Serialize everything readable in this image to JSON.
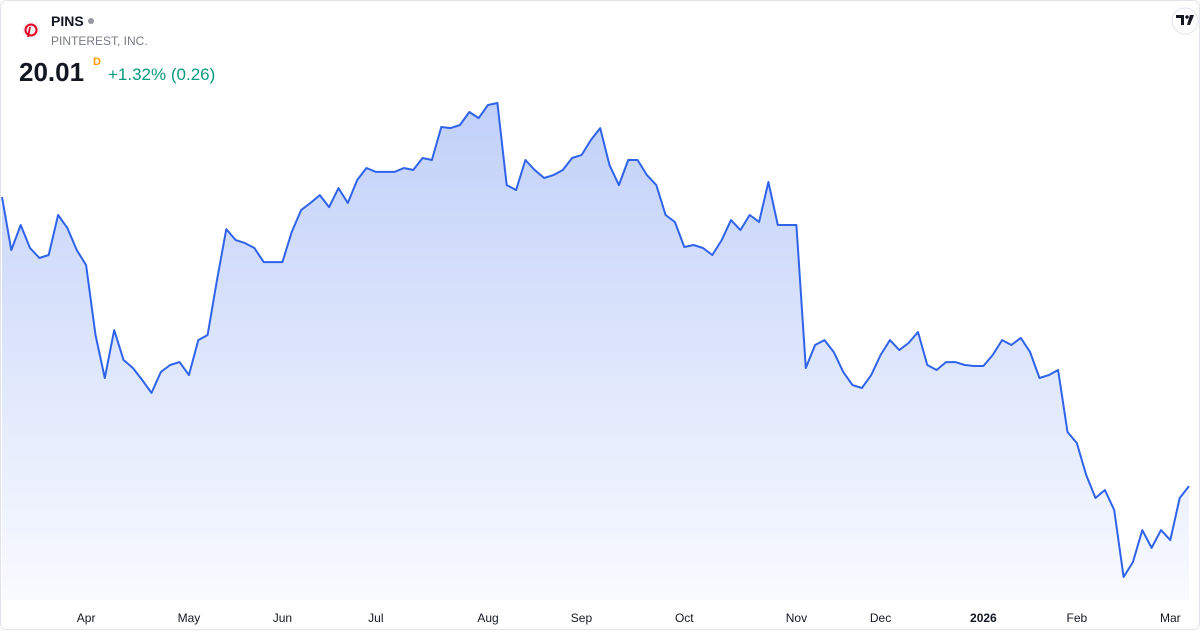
{
  "chart_data": {
    "type": "area",
    "symbol": "PINS",
    "name": "PINTEREST, INC.",
    "last_price": 20.01,
    "interval": "D",
    "change": "+1.32% (0.26)",
    "color": "#2f63ea",
    "categories": [
      null,
      null,
      null,
      null,
      null,
      null,
      null,
      null,
      null,
      "Apr",
      null,
      null,
      null,
      null,
      null,
      null,
      null,
      null,
      null,
      null,
      "May",
      null,
      null,
      null,
      null,
      null,
      null,
      null,
      null,
      null,
      "Jun",
      null,
      null,
      null,
      null,
      null,
      null,
      null,
      null,
      null,
      "Jul",
      null,
      null,
      null,
      null,
      null,
      null,
      null,
      null,
      null,
      null,
      null,
      "Aug",
      null,
      null,
      null,
      null,
      null,
      null,
      null,
      null,
      null,
      "Sep",
      null,
      null,
      null,
      null,
      null,
      null,
      null,
      null,
      null,
      null,
      "Oct",
      null,
      null,
      null,
      null,
      null,
      null,
      null,
      null,
      null,
      null,
      null,
      "Nov",
      null,
      null,
      null,
      null,
      null,
      null,
      null,
      null,
      "Dec",
      null,
      null,
      null,
      null,
      null,
      null,
      null,
      null,
      null,
      null,
      "2026",
      null,
      null,
      null,
      null,
      null,
      null,
      null,
      null,
      null,
      "Feb",
      null,
      null,
      null,
      null,
      null,
      null,
      null,
      null,
      null,
      "Mar",
      null,
      null
    ],
    "values": [
      34.72,
      32.02,
      33.3,
      32.13,
      31.62,
      31.77,
      33.81,
      33.14,
      32.02,
      31.26,
      27.7,
      25.51,
      27.95,
      26.43,
      26.02,
      25.41,
      24.75,
      25.82,
      26.17,
      26.32,
      25.66,
      27.44,
      27.7,
      30.5,
      33.09,
      32.53,
      32.38,
      32.13,
      31.41,
      31.41,
      31.41,
      32.94,
      34.06,
      34.42,
      34.82,
      34.21,
      35.18,
      34.42,
      35.59,
      36.2,
      36.0,
      36.0,
      36.0,
      36.2,
      36.1,
      36.71,
      36.61,
      38.29,
      38.23,
      38.39,
      39.05,
      38.74,
      39.41,
      39.51,
      35.33,
      35.08,
      36.61,
      36.1,
      35.69,
      35.84,
      36.1,
      36.71,
      36.86,
      37.62,
      38.23,
      36.35,
      35.33,
      36.61,
      36.61,
      35.84,
      35.33,
      33.81,
      33.45,
      32.18,
      32.28,
      32.13,
      31.77,
      32.53,
      33.55,
      33.04,
      33.81,
      33.45,
      35.49,
      33.3,
      33.3,
      33.3,
      26.02,
      27.19,
      27.44,
      26.83,
      25.82,
      25.15,
      25.0,
      25.66,
      26.68,
      27.44,
      26.93,
      27.29,
      27.85,
      26.17,
      25.92,
      26.32,
      26.32,
      26.17,
      26.12,
      26.12,
      26.68,
      27.44,
      27.19,
      27.55,
      26.83,
      25.51,
      25.66,
      25.92,
      22.76,
      22.2,
      20.57,
      19.4,
      19.81,
      18.79,
      15.38,
      16.14,
      17.77,
      16.86,
      17.77,
      17.26,
      19.4,
      20.01
    ]
  }
}
